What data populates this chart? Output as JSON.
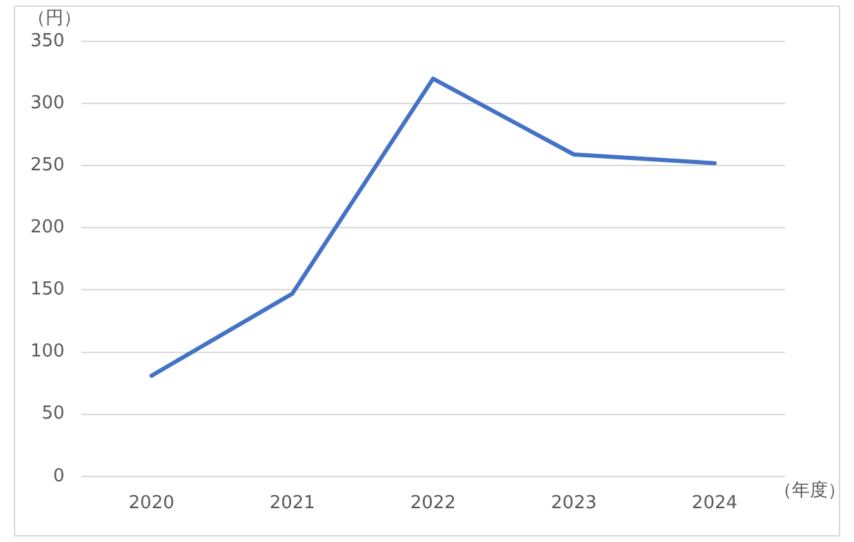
{
  "chart_data": {
    "type": "line",
    "ylabel": "（円）",
    "xlabel": "（年度）",
    "categories": [
      "2020",
      "2021",
      "2022",
      "2023",
      "2024"
    ],
    "series": [
      {
        "color": "#4472c4",
        "values": [
          81,
          147,
          320,
          259,
          252
        ]
      }
    ],
    "ylim": [
      0,
      350
    ],
    "yticks": [
      0,
      50,
      100,
      150,
      200,
      250,
      300,
      350
    ],
    "grid": "y",
    "legend": false,
    "marker": "none",
    "line_style": "solid"
  }
}
